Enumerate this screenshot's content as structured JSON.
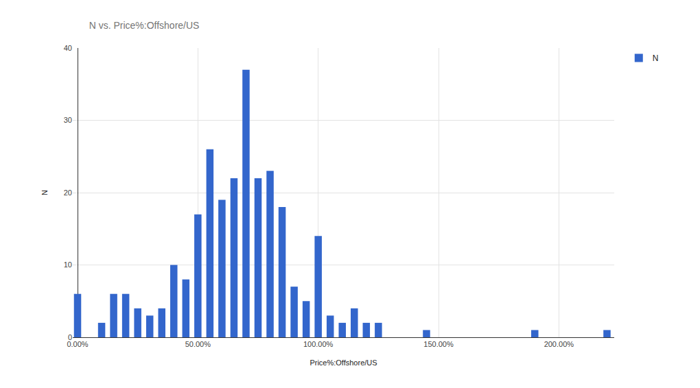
{
  "chart_data": {
    "type": "bar",
    "title": "N vs. Price%:Offshore/US",
    "x_label": "Price%:Offshore/US",
    "y_label": "N",
    "x": [
      0,
      10,
      15,
      20,
      25,
      30,
      35,
      40,
      45,
      50,
      55,
      60,
      65,
      70,
      75,
      80,
      85,
      90,
      95,
      100,
      105,
      110,
      115,
      120,
      125,
      145,
      190,
      220
    ],
    "series": [
      {
        "name": "N",
        "color": "#3366cc",
        "values": [
          6,
          2,
          6,
          6,
          4,
          3,
          4,
          10,
          8,
          17,
          26,
          19,
          22,
          37,
          22,
          23,
          18,
          7,
          5,
          14,
          3,
          2,
          4,
          2,
          2,
          1,
          1,
          1
        ]
      }
    ],
    "xlim": [
      -2,
      223
    ],
    "xticks": [
      {
        "value": 0,
        "label": "0.00%"
      },
      {
        "value": 50,
        "label": "50.00%"
      },
      {
        "value": 100,
        "label": "100.00%"
      },
      {
        "value": 150,
        "label": "150.00%"
      },
      {
        "value": 200,
        "label": "200.00%"
      }
    ],
    "ylim": [
      0,
      40
    ],
    "yticks": [
      0,
      10,
      20,
      30,
      40
    ],
    "grid": true,
    "legend": "top-right"
  }
}
